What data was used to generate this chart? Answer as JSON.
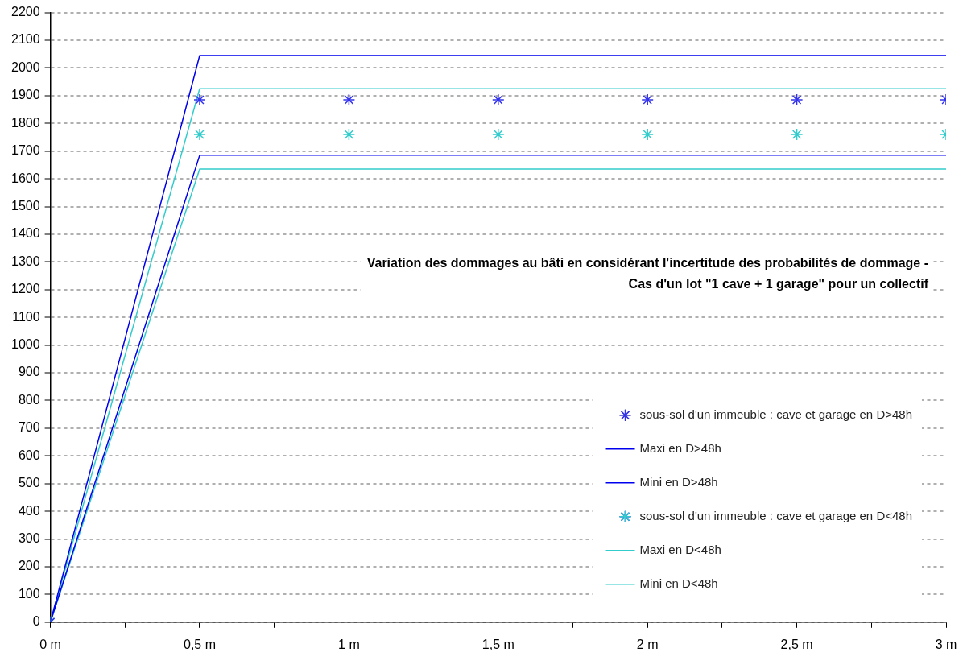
{
  "chart_data": {
    "type": "line",
    "title": "Variation des dommages au bâti en considérant l'incertitude des probabilités de dommage - Cas d'un lot \"1 cave + 1 garage\" pour un collectif",
    "x": [
      0,
      0.5,
      1,
      1.5,
      2,
      2.5,
      3
    ],
    "series": [
      {
        "name": "sous-sol d'un immeuble : cave et garage en D>48h",
        "type": "scatter",
        "marker": "cross",
        "color": "#3333ee",
        "values": [
          0,
          1885,
          1885,
          1885,
          1885,
          1885,
          1885
        ]
      },
      {
        "name": "Maxi en D>48h",
        "type": "line",
        "color": "#0000ee",
        "values": [
          0,
          2045,
          2045,
          2045,
          2045,
          2045,
          2045
        ]
      },
      {
        "name": "Mini en D>48h",
        "type": "line",
        "color": "#0000ee",
        "values": [
          0,
          1685,
          1685,
          1685,
          1685,
          1685,
          1685
        ]
      },
      {
        "name": "sous-sol d'un immeuble : cave et garage en D<48h",
        "type": "scatter",
        "marker": "cross",
        "color": "#33cccc",
        "values": [
          0,
          1760,
          1760,
          1760,
          1760,
          1760,
          1760
        ]
      },
      {
        "name": "Maxi en D<48h",
        "type": "line",
        "color": "#33cccc",
        "values": [
          0,
          1925,
          1925,
          1925,
          1925,
          1925,
          1925
        ]
      },
      {
        "name": "Mini en D<48h",
        "type": "line",
        "color": "#33cccc",
        "values": [
          0,
          1635,
          1635,
          1635,
          1635,
          1635,
          1635
        ]
      }
    ],
    "xlim": [
      0,
      3
    ],
    "xticks": [
      {
        "value": 0,
        "label": "0 m"
      },
      {
        "value": 0.25,
        "label": null
      },
      {
        "value": 0.5,
        "label": "0,5 m"
      },
      {
        "value": 0.75,
        "label": null
      },
      {
        "value": 1,
        "label": "1 m"
      },
      {
        "value": 1.25,
        "label": null
      },
      {
        "value": 1.5,
        "label": "1,5 m"
      },
      {
        "value": 1.75,
        "label": null
      },
      {
        "value": 2,
        "label": "2 m"
      },
      {
        "value": 2.25,
        "label": null
      },
      {
        "value": 2.5,
        "label": "2,5 m"
      },
      {
        "value": 2.75,
        "label": null
      },
      {
        "value": 3,
        "label": "3 m"
      }
    ],
    "ylim": [
      0,
      2200
    ],
    "yticks": [
      0,
      100,
      200,
      300,
      400,
      500,
      600,
      700,
      800,
      900,
      1000,
      1100,
      1200,
      1300,
      1400,
      1500,
      1600,
      1700,
      1800,
      1900,
      2000,
      2100,
      2200
    ],
    "grid": "y",
    "legend": "bottom right"
  }
}
